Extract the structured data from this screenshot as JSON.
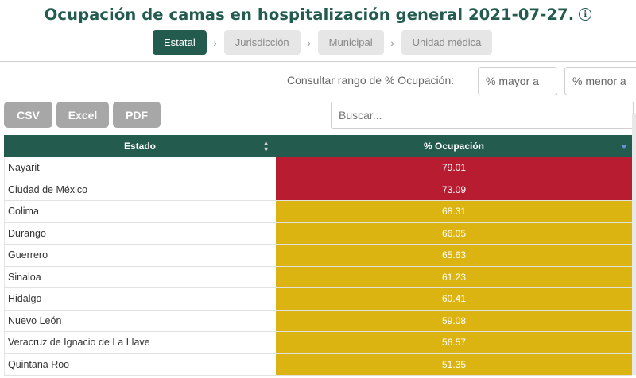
{
  "header": {
    "title": "Ocupación de camas en hospitalización general 2021-07-27.",
    "info_glyph": "i"
  },
  "tabs": [
    {
      "label": "Estatal",
      "active": true
    },
    {
      "label": "Jurisdicción",
      "active": false
    },
    {
      "label": "Municipal",
      "active": false
    },
    {
      "label": "Unidad médica",
      "active": false
    }
  ],
  "filters": {
    "range_label": "Consultar rango de % Ocupación:",
    "min_placeholder": "% mayor a",
    "max_placeholder": "% menor a"
  },
  "export": {
    "csv_label": "CSV",
    "excel_label": "Excel",
    "pdf_label": "PDF"
  },
  "search": {
    "placeholder": "Buscar..."
  },
  "table": {
    "columns": [
      "Estado",
      "% Ocupación"
    ],
    "rows": [
      {
        "estado": "Nayarit",
        "ocupacion": "79.01",
        "level": "high"
      },
      {
        "estado": "Ciudad de México",
        "ocupacion": "73.09",
        "level": "high"
      },
      {
        "estado": "Colima",
        "ocupacion": "68.31",
        "level": "medium"
      },
      {
        "estado": "Durango",
        "ocupacion": "66.05",
        "level": "medium"
      },
      {
        "estado": "Guerrero",
        "ocupacion": "65.63",
        "level": "medium"
      },
      {
        "estado": "Sinaloa",
        "ocupacion": "61.23",
        "level": "medium"
      },
      {
        "estado": "Hidalgo",
        "ocupacion": "60.41",
        "level": "medium"
      },
      {
        "estado": "Nuevo León",
        "ocupacion": "59.08",
        "level": "medium"
      },
      {
        "estado": "Veracruz de Ignacio de La Llave",
        "ocupacion": "56.57",
        "level": "medium"
      },
      {
        "estado": "Quintana Roo",
        "ocupacion": "51.35",
        "level": "medium"
      }
    ]
  },
  "colors": {
    "brand": "#235b4e",
    "high": "#b71c31",
    "medium": "#dcb412"
  }
}
